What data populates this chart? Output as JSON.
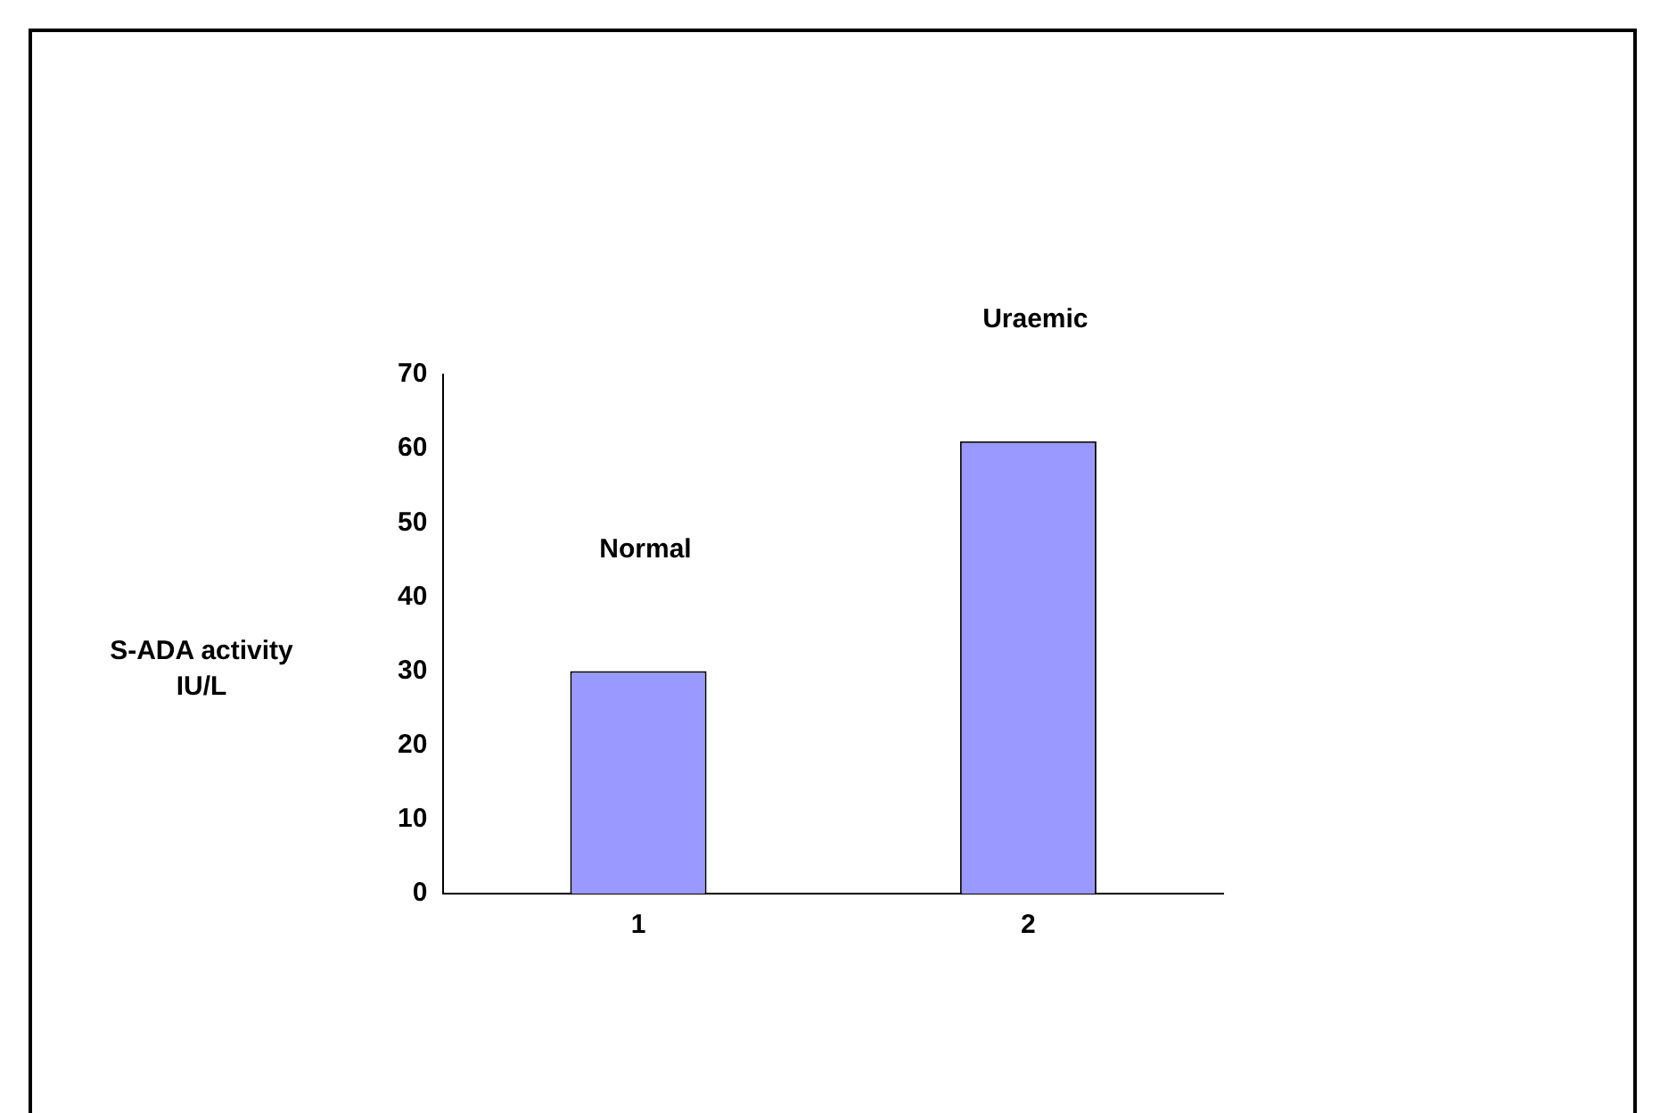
{
  "chart_data": {
    "type": "bar",
    "ylabel": "S-ADA activity\nIU/L",
    "categories": [
      "1",
      "2"
    ],
    "values": [
      30,
      61
    ],
    "color": "#9999ff",
    "ylim": [
      0,
      70
    ],
    "yticks": [
      0,
      10,
      20,
      30,
      40,
      50,
      60,
      70
    ],
    "grid": false,
    "legend": false,
    "annotations": [
      "Normal",
      "Uraemic"
    ]
  }
}
